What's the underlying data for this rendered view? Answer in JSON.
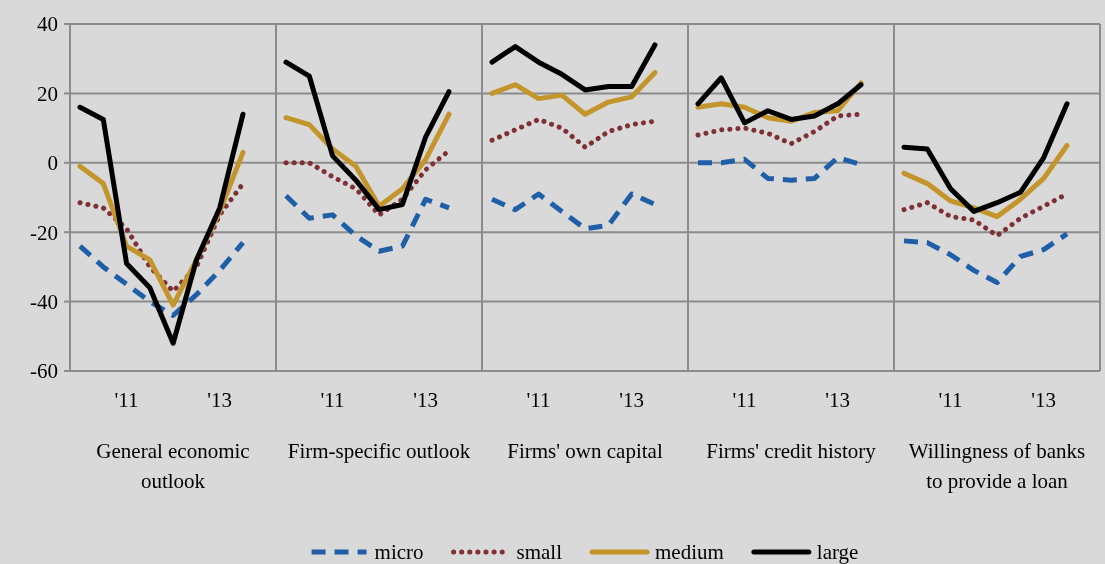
{
  "chart_data": [
    {
      "type": "line",
      "xlabel": "General economic outlook",
      "categories": [
        null,
        null,
        "'11",
        null,
        null,
        null,
        "'13",
        null
      ],
      "ylim": [
        -60,
        40
      ],
      "yticks": [
        -60,
        -40,
        -20,
        0,
        20,
        40
      ],
      "grid": "y",
      "legend": "bottom",
      "series": [
        {
          "name": "micro",
          "color": "#1f5fa8",
          "line_style": "dashed",
          "values": [
            -24,
            -30,
            -35,
            -40,
            -44,
            -38,
            -31,
            -23
          ]
        },
        {
          "name": "small",
          "color": "#7f3035",
          "line_style": "dotted",
          "values": [
            -11.5,
            -13,
            -19,
            -30,
            -37,
            -30,
            -15,
            -6
          ]
        },
        {
          "name": "medium",
          "color": "#c4952b",
          "line_style": "solid",
          "values": [
            -1,
            -6,
            -24,
            -28,
            -41,
            -28,
            -14,
            3
          ]
        },
        {
          "name": "large",
          "color": "#000000",
          "line_style": "solid",
          "values": [
            16,
            12.5,
            -29,
            -36,
            -52,
            -28,
            -13,
            14
          ]
        }
      ]
    },
    {
      "type": "line",
      "xlabel": "Firm-specific outlook",
      "categories": [
        null,
        null,
        "'11",
        null,
        null,
        null,
        "'13",
        null
      ],
      "ylim": [
        -60,
        40
      ],
      "yticks": [
        -60,
        -40,
        -20,
        0,
        20,
        40
      ],
      "grid": "y",
      "tick_labels": "x",
      "series": [
        {
          "name": "micro",
          "color": "#1f5fa8",
          "line_style": "dashed",
          "values": [
            -9.5,
            -16,
            -15,
            -21,
            -25.5,
            -24,
            -10.5,
            -13
          ]
        },
        {
          "name": "small",
          "color": "#7f3035",
          "line_style": "dotted",
          "values": [
            0,
            0,
            -4,
            -7.5,
            -15,
            -10.5,
            -2,
            3.5
          ]
        },
        {
          "name": "medium",
          "color": "#c4952b",
          "line_style": "solid",
          "values": [
            13,
            11,
            4,
            -1,
            -12.5,
            -7.5,
            1,
            14
          ]
        },
        {
          "name": "large",
          "color": "#000000",
          "line_style": "solid",
          "values": [
            29,
            25,
            2,
            -5,
            -13.5,
            -12,
            7.5,
            20.5
          ]
        }
      ]
    },
    {
      "type": "line",
      "xlabel": "Firms' own capital",
      "categories": [
        null,
        null,
        "'11",
        null,
        null,
        null,
        "'13",
        null
      ],
      "ylim": [
        -60,
        40
      ],
      "yticks": [
        -60,
        -40,
        -20,
        0,
        20,
        40
      ],
      "grid": "y",
      "tick_labels": "x",
      "series": [
        {
          "name": "micro",
          "color": "#1f5fa8",
          "line_style": "dashed",
          "values": [
            -10.5,
            -13.5,
            -9,
            -14,
            -19,
            -18,
            -9,
            -12
          ]
        },
        {
          "name": "small",
          "color": "#7f3035",
          "line_style": "dotted",
          "values": [
            6.5,
            9.5,
            12.5,
            10,
            4.5,
            9,
            11,
            12
          ]
        },
        {
          "name": "medium",
          "color": "#c4952b",
          "line_style": "solid",
          "values": [
            20,
            22.5,
            18.5,
            19.5,
            14,
            17.5,
            19,
            26
          ]
        },
        {
          "name": "large",
          "color": "#000000",
          "line_style": "solid",
          "values": [
            29,
            33.5,
            29,
            25.5,
            21,
            22,
            22,
            34
          ]
        }
      ]
    },
    {
      "type": "line",
      "xlabel": "Firms' credit history",
      "categories": [
        null,
        null,
        "'11",
        null,
        null,
        null,
        "'13",
        null
      ],
      "ylim": [
        -60,
        40
      ],
      "yticks": [
        -60,
        -40,
        -20,
        0,
        20,
        40
      ],
      "grid": "y",
      "tick_labels": "x",
      "series": [
        {
          "name": "micro",
          "color": "#1f5fa8",
          "line_style": "dashed",
          "values": [
            0,
            0,
            1,
            -4.5,
            -5,
            -4.5,
            1.5,
            -0.5
          ]
        },
        {
          "name": "small",
          "color": "#7f3035",
          "line_style": "dotted",
          "values": [
            8,
            9.5,
            10,
            8.5,
            5.5,
            9,
            13.5,
            14
          ]
        },
        {
          "name": "medium",
          "color": "#c4952b",
          "line_style": "solid",
          "values": [
            16,
            17,
            16,
            13,
            12,
            14.5,
            15,
            23
          ]
        },
        {
          "name": "large",
          "color": "#000000",
          "line_style": "solid",
          "values": [
            17,
            24.5,
            11.5,
            15,
            12.5,
            13.5,
            17,
            22.5
          ]
        }
      ]
    },
    {
      "type": "line",
      "xlabel": "Willingness of banks to provide a loan",
      "categories": [
        null,
        null,
        "'11",
        null,
        null,
        null,
        "'13",
        null
      ],
      "ylim": [
        -60,
        40
      ],
      "yticks": [
        -60,
        -40,
        -20,
        0,
        20,
        40
      ],
      "grid": "y",
      "tick_labels": "x",
      "series": [
        {
          "name": "micro",
          "color": "#1f5fa8",
          "line_style": "dashed",
          "values": [
            -22.5,
            -23,
            -26.5,
            -31,
            -34.5,
            -27,
            -25,
            -20.5
          ]
        },
        {
          "name": "small",
          "color": "#7f3035",
          "line_style": "dotted",
          "values": [
            -13.5,
            -11.5,
            -15.5,
            -16.5,
            -21,
            -16,
            -12.5,
            -9
          ]
        },
        {
          "name": "medium",
          "color": "#c4952b",
          "line_style": "solid",
          "values": [
            -3,
            -6,
            -11,
            -13,
            -15.5,
            -10.5,
            -4.5,
            5
          ]
        },
        {
          "name": "large",
          "color": "#000000",
          "line_style": "solid",
          "values": [
            4.5,
            4,
            -7.5,
            -14,
            -11.5,
            -8.5,
            1.5,
            17
          ]
        }
      ]
    }
  ]
}
